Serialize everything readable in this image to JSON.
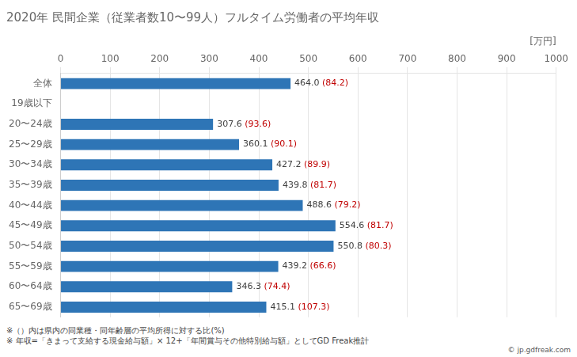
{
  "chart_data": {
    "type": "bar",
    "orientation": "horizontal",
    "title": "2020年 民間企業（従業者数10〜99人）フルタイム労働者の平均年収",
    "categories": [
      "全体",
      "19歳以下",
      "20〜24歳",
      "25〜29歳",
      "30〜34歳",
      "35〜39歳",
      "40〜44歳",
      "45〜49歳",
      "50〜54歳",
      "55〜59歳",
      "60〜64歳",
      "65〜69歳"
    ],
    "values": [
      464.0,
      0,
      307.6,
      360.1,
      427.2,
      439.8,
      488.6,
      554.6,
      550.8,
      439.2,
      346.3,
      415.1
    ],
    "value_labels": [
      "464.0",
      null,
      "307.6",
      "360.1",
      "427.2",
      "439.8",
      "488.6",
      "554.6",
      "550.8",
      "439.2",
      "346.3",
      "415.1"
    ],
    "data_labels": true,
    "percent_labels": {
      "color": "#C00000",
      "labels": [
        "(84.2)",
        null,
        "(93.6)",
        "(90.1)",
        "(89.9)",
        "(81.7)",
        "(79.2)",
        "(81.7)",
        "(80.3)",
        "(66.6)",
        "(74.4)",
        "(107.3)"
      ]
    },
    "color": "#2E75B6",
    "xlabel": "[万円]",
    "xlim": [
      0,
      1000
    ],
    "xticks": [
      0,
      100,
      200,
      300,
      400,
      500,
      600,
      700,
      800,
      900,
      1000
    ],
    "grid": true,
    "footnotes": [
      "※（）内は県内の同業種・同年齢層の平均所得に対する比(%)",
      "※ 年収=「きまって支給する現金給与額」× 12+「年間賞与その他特別給与額」としてGD Freak推計"
    ],
    "source": "© jp.gdfreak.com"
  }
}
